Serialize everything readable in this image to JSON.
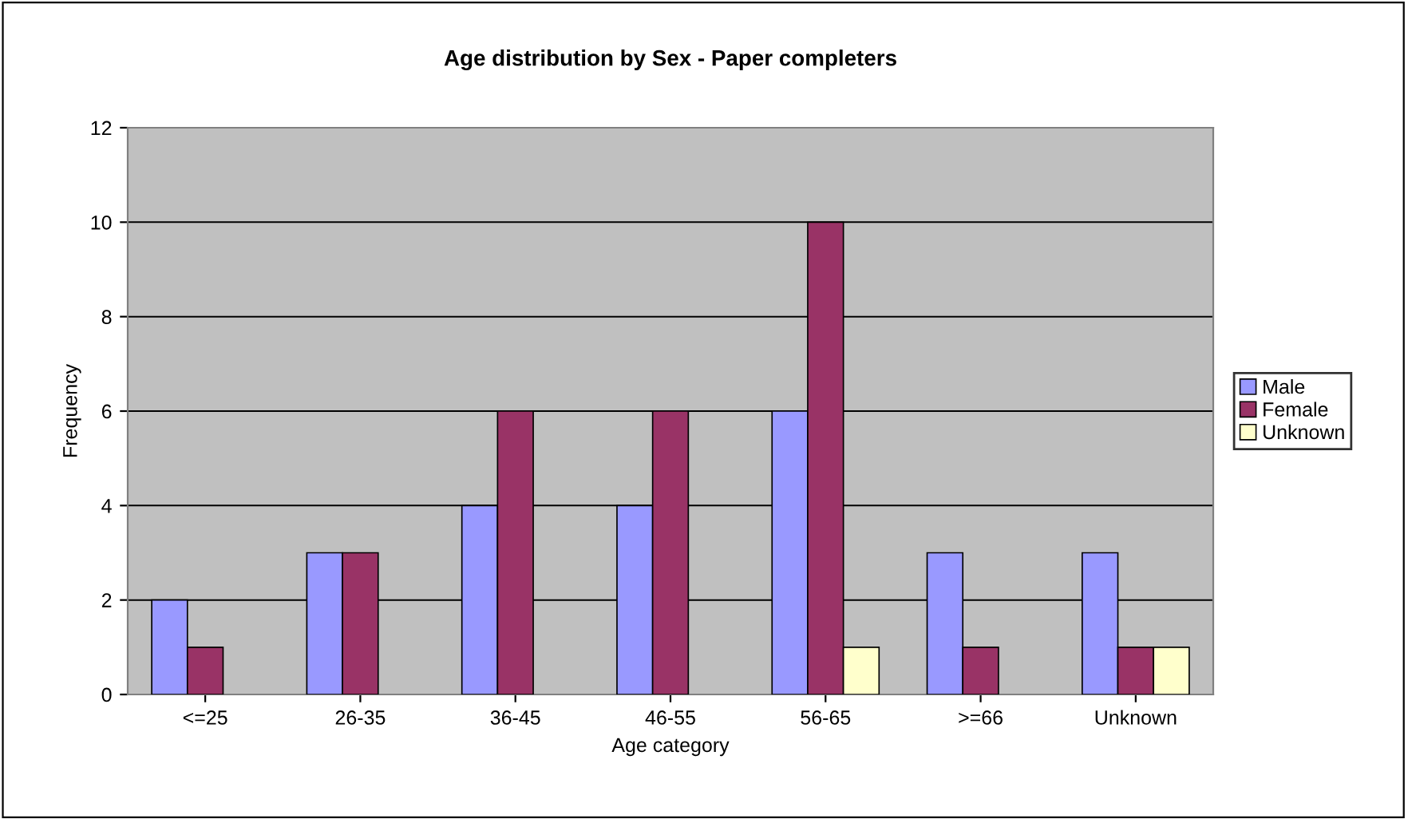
{
  "chart_data": {
    "type": "bar",
    "title": "Age distribution by Sex - Paper completers",
    "xlabel": "Age category",
    "ylabel": "Frequency",
    "categories": [
      "<=25",
      "26-35",
      "36-45",
      "46-55",
      "56-65",
      ">=66",
      "Unknown"
    ],
    "series": [
      {
        "name": "Male",
        "color": "#9999ff",
        "values": [
          2,
          3,
          4,
          4,
          6,
          3,
          3
        ]
      },
      {
        "name": "Female",
        "color": "#993366",
        "values": [
          1,
          3,
          6,
          6,
          10,
          1,
          1
        ]
      },
      {
        "name": "Unknown",
        "color": "#ffffcc",
        "values": [
          null,
          null,
          null,
          null,
          1,
          null,
          1
        ]
      }
    ],
    "ylim": [
      0,
      12
    ],
    "yticks": [
      0,
      2,
      4,
      6,
      8,
      10,
      12
    ],
    "grid": "y",
    "legend": "right"
  }
}
